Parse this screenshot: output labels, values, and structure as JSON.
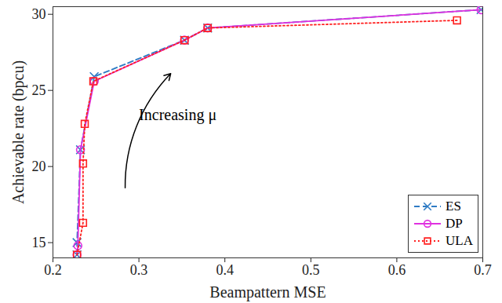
{
  "chart_data": {
    "type": "line",
    "x_label": "Beampattern MSE",
    "y_label": "Achievable rate (bpcu)",
    "xlim": [
      0.2,
      0.7
    ],
    "xticks": [
      0.2,
      0.3,
      0.4,
      0.5,
      0.6,
      0.7
    ],
    "ylim": [
      14,
      30.5
    ],
    "yticks": [
      15,
      20,
      25,
      30
    ],
    "grid": false,
    "legend": "bottom-right",
    "annotations": [
      {
        "text": "Increasing μ",
        "x": 0.3,
        "y": 23.4
      }
    ],
    "series": [
      {
        "name": "ES",
        "color": "#2e7bc4",
        "marker": "x",
        "line_style": "dashed",
        "x": [
          0.228,
          0.228,
          0.232,
          0.248,
          0.353,
          0.38,
          0.698
        ],
        "values": [
          14.2,
          15.0,
          21.1,
          25.9,
          28.3,
          29.1,
          30.3
        ]
      },
      {
        "name": "DP",
        "color": "#e030e0",
        "marker": "circle",
        "line_style": "solid",
        "x": [
          0.228,
          0.229,
          0.232,
          0.248,
          0.353,
          0.38,
          0.698
        ],
        "values": [
          14.2,
          14.8,
          21.1,
          25.6,
          28.3,
          29.1,
          30.3
        ]
      },
      {
        "name": "ULA",
        "color": "#ff2020",
        "marker": "square",
        "line_style": "dotted",
        "x": [
          0.228,
          0.235,
          0.235,
          0.237,
          0.247,
          0.353,
          0.38,
          0.67
        ],
        "values": [
          14.2,
          16.3,
          20.2,
          22.8,
          25.6,
          28.3,
          29.1,
          29.6
        ]
      }
    ]
  }
}
